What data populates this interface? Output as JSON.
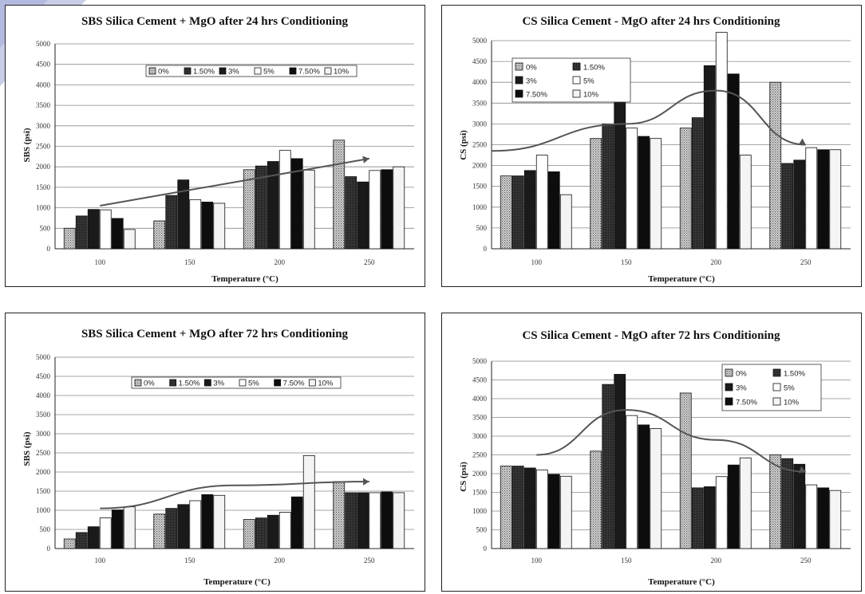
{
  "chart_data": [
    {
      "type": "bar",
      "title": "SBS Silica Cement + MgO after 24 hrs Conditioning",
      "xlabel": "Temperature (°C)",
      "ylabel": "SBS (psi)",
      "categories": [
        "100",
        "150",
        "200",
        "250"
      ],
      "ylim": [
        0,
        5000
      ],
      "yticks": [
        "0",
        "500",
        "1000",
        "1500",
        "2000",
        "2500",
        "3000",
        "3500",
        "4000",
        "4500",
        "5000"
      ],
      "grid": true,
      "legend_position": "top",
      "legend_columns": 6,
      "series": [
        {
          "name": "0%",
          "values": [
            500,
            680,
            1930,
            2650
          ]
        },
        {
          "name": "1.50%",
          "values": [
            800,
            1300,
            2020,
            1760
          ]
        },
        {
          "name": "3%",
          "values": [
            960,
            1680,
            2130,
            1630
          ]
        },
        {
          "name": "5%",
          "values": [
            950,
            1200,
            2400,
            1910
          ]
        },
        {
          "name": "7.50%",
          "values": [
            740,
            1140,
            2200,
            1930
          ]
        },
        {
          "name": "10%",
          "values": [
            470,
            1110,
            1920,
            2000
          ]
        }
      ],
      "trend": [
        [
          100,
          1050
        ],
        [
          250,
          2200
        ]
      ]
    },
    {
      "type": "bar",
      "title": "CS Silica Cement - MgO after 24 hrs Conditioning",
      "xlabel": "Temperature (°C)",
      "ylabel": "CS (psi)",
      "categories": [
        "100",
        "150",
        "200",
        "250"
      ],
      "ylim": [
        0,
        5000
      ],
      "yticks": [
        "0",
        "500",
        "1000",
        "1500",
        "2000",
        "2500",
        "3000",
        "3500",
        "4000",
        "4500",
        "5000"
      ],
      "grid": true,
      "legend_position": "top-left",
      "legend_columns": 2,
      "series": [
        {
          "name": "0%",
          "values": [
            1750,
            2650,
            2900,
            4000
          ]
        },
        {
          "name": "1.50%",
          "values": [
            1750,
            3000,
            3150,
            2050
          ]
        },
        {
          "name": "3%",
          "values": [
            1880,
            4450,
            4400,
            2130
          ]
        },
        {
          "name": "5%",
          "values": [
            2250,
            2900,
            5200,
            2430
          ]
        },
        {
          "name": "7.50%",
          "values": [
            1850,
            2700,
            4200,
            2380
          ]
        },
        {
          "name": "10%",
          "values": [
            1300,
            2650,
            2250,
            2380
          ]
        }
      ],
      "trend": [
        [
          75,
          2350
        ],
        [
          150,
          3000
        ],
        [
          200,
          3800
        ],
        [
          250,
          2500
        ]
      ]
    },
    {
      "type": "bar",
      "title": "SBS Silica Cement + MgO after 72 hrs Conditioning",
      "xlabel": "Temperature (°C)",
      "ylabel": "SBS (psi)",
      "categories": [
        "100",
        "150",
        "200",
        "250"
      ],
      "ylim": [
        0,
        5000
      ],
      "yticks": [
        "0",
        "500",
        "1000",
        "1500",
        "2000",
        "2500",
        "3000",
        "3500",
        "4000",
        "4500",
        "5000"
      ],
      "grid": true,
      "legend_position": "top",
      "legend_columns": 6,
      "series": [
        {
          "name": "0%",
          "values": [
            250,
            900,
            760,
            1750
          ]
        },
        {
          "name": "1.50%",
          "values": [
            420,
            1050,
            800,
            1460
          ]
        },
        {
          "name": "3%",
          "values": [
            570,
            1150,
            870,
            1460
          ]
        },
        {
          "name": "5%",
          "values": [
            800,
            1250,
            950,
            1460
          ]
        },
        {
          "name": "7.50%",
          "values": [
            1010,
            1410,
            1350,
            1480
          ]
        },
        {
          "name": "10%",
          "values": [
            1090,
            1390,
            2430,
            1460
          ]
        }
      ],
      "trend": [
        [
          100,
          1050
        ],
        [
          175,
          1650
        ],
        [
          250,
          1750
        ]
      ]
    },
    {
      "type": "bar",
      "title": "CS Silica Cement - MgO after 72 hrs Conditioning",
      "xlabel": "Temperature (°C)",
      "ylabel": "CS (psi)",
      "categories": [
        "100",
        "150",
        "200",
        "250"
      ],
      "ylim": [
        0,
        5000
      ],
      "yticks": [
        "0",
        "500",
        "1000",
        "1500",
        "2000",
        "2500",
        "3000",
        "3500",
        "4000",
        "4500",
        "5000"
      ],
      "grid": true,
      "legend_position": "top-right",
      "legend_columns": 2,
      "series": [
        {
          "name": "0%",
          "values": [
            2200,
            2600,
            4150,
            2500
          ]
        },
        {
          "name": "1.50%",
          "values": [
            2200,
            4380,
            1620,
            2400
          ]
        },
        {
          "name": "3%",
          "values": [
            2150,
            4650,
            1650,
            2250
          ]
        },
        {
          "name": "5%",
          "values": [
            2100,
            3550,
            1920,
            1700
          ]
        },
        {
          "name": "7.50%",
          "values": [
            1980,
            3300,
            2230,
            1620
          ]
        },
        {
          "name": "10%",
          "values": [
            1930,
            3200,
            2420,
            1550
          ]
        }
      ],
      "trend": [
        [
          100,
          2500
        ],
        [
          150,
          3700
        ],
        [
          200,
          2900
        ],
        [
          250,
          2050
        ]
      ]
    }
  ]
}
